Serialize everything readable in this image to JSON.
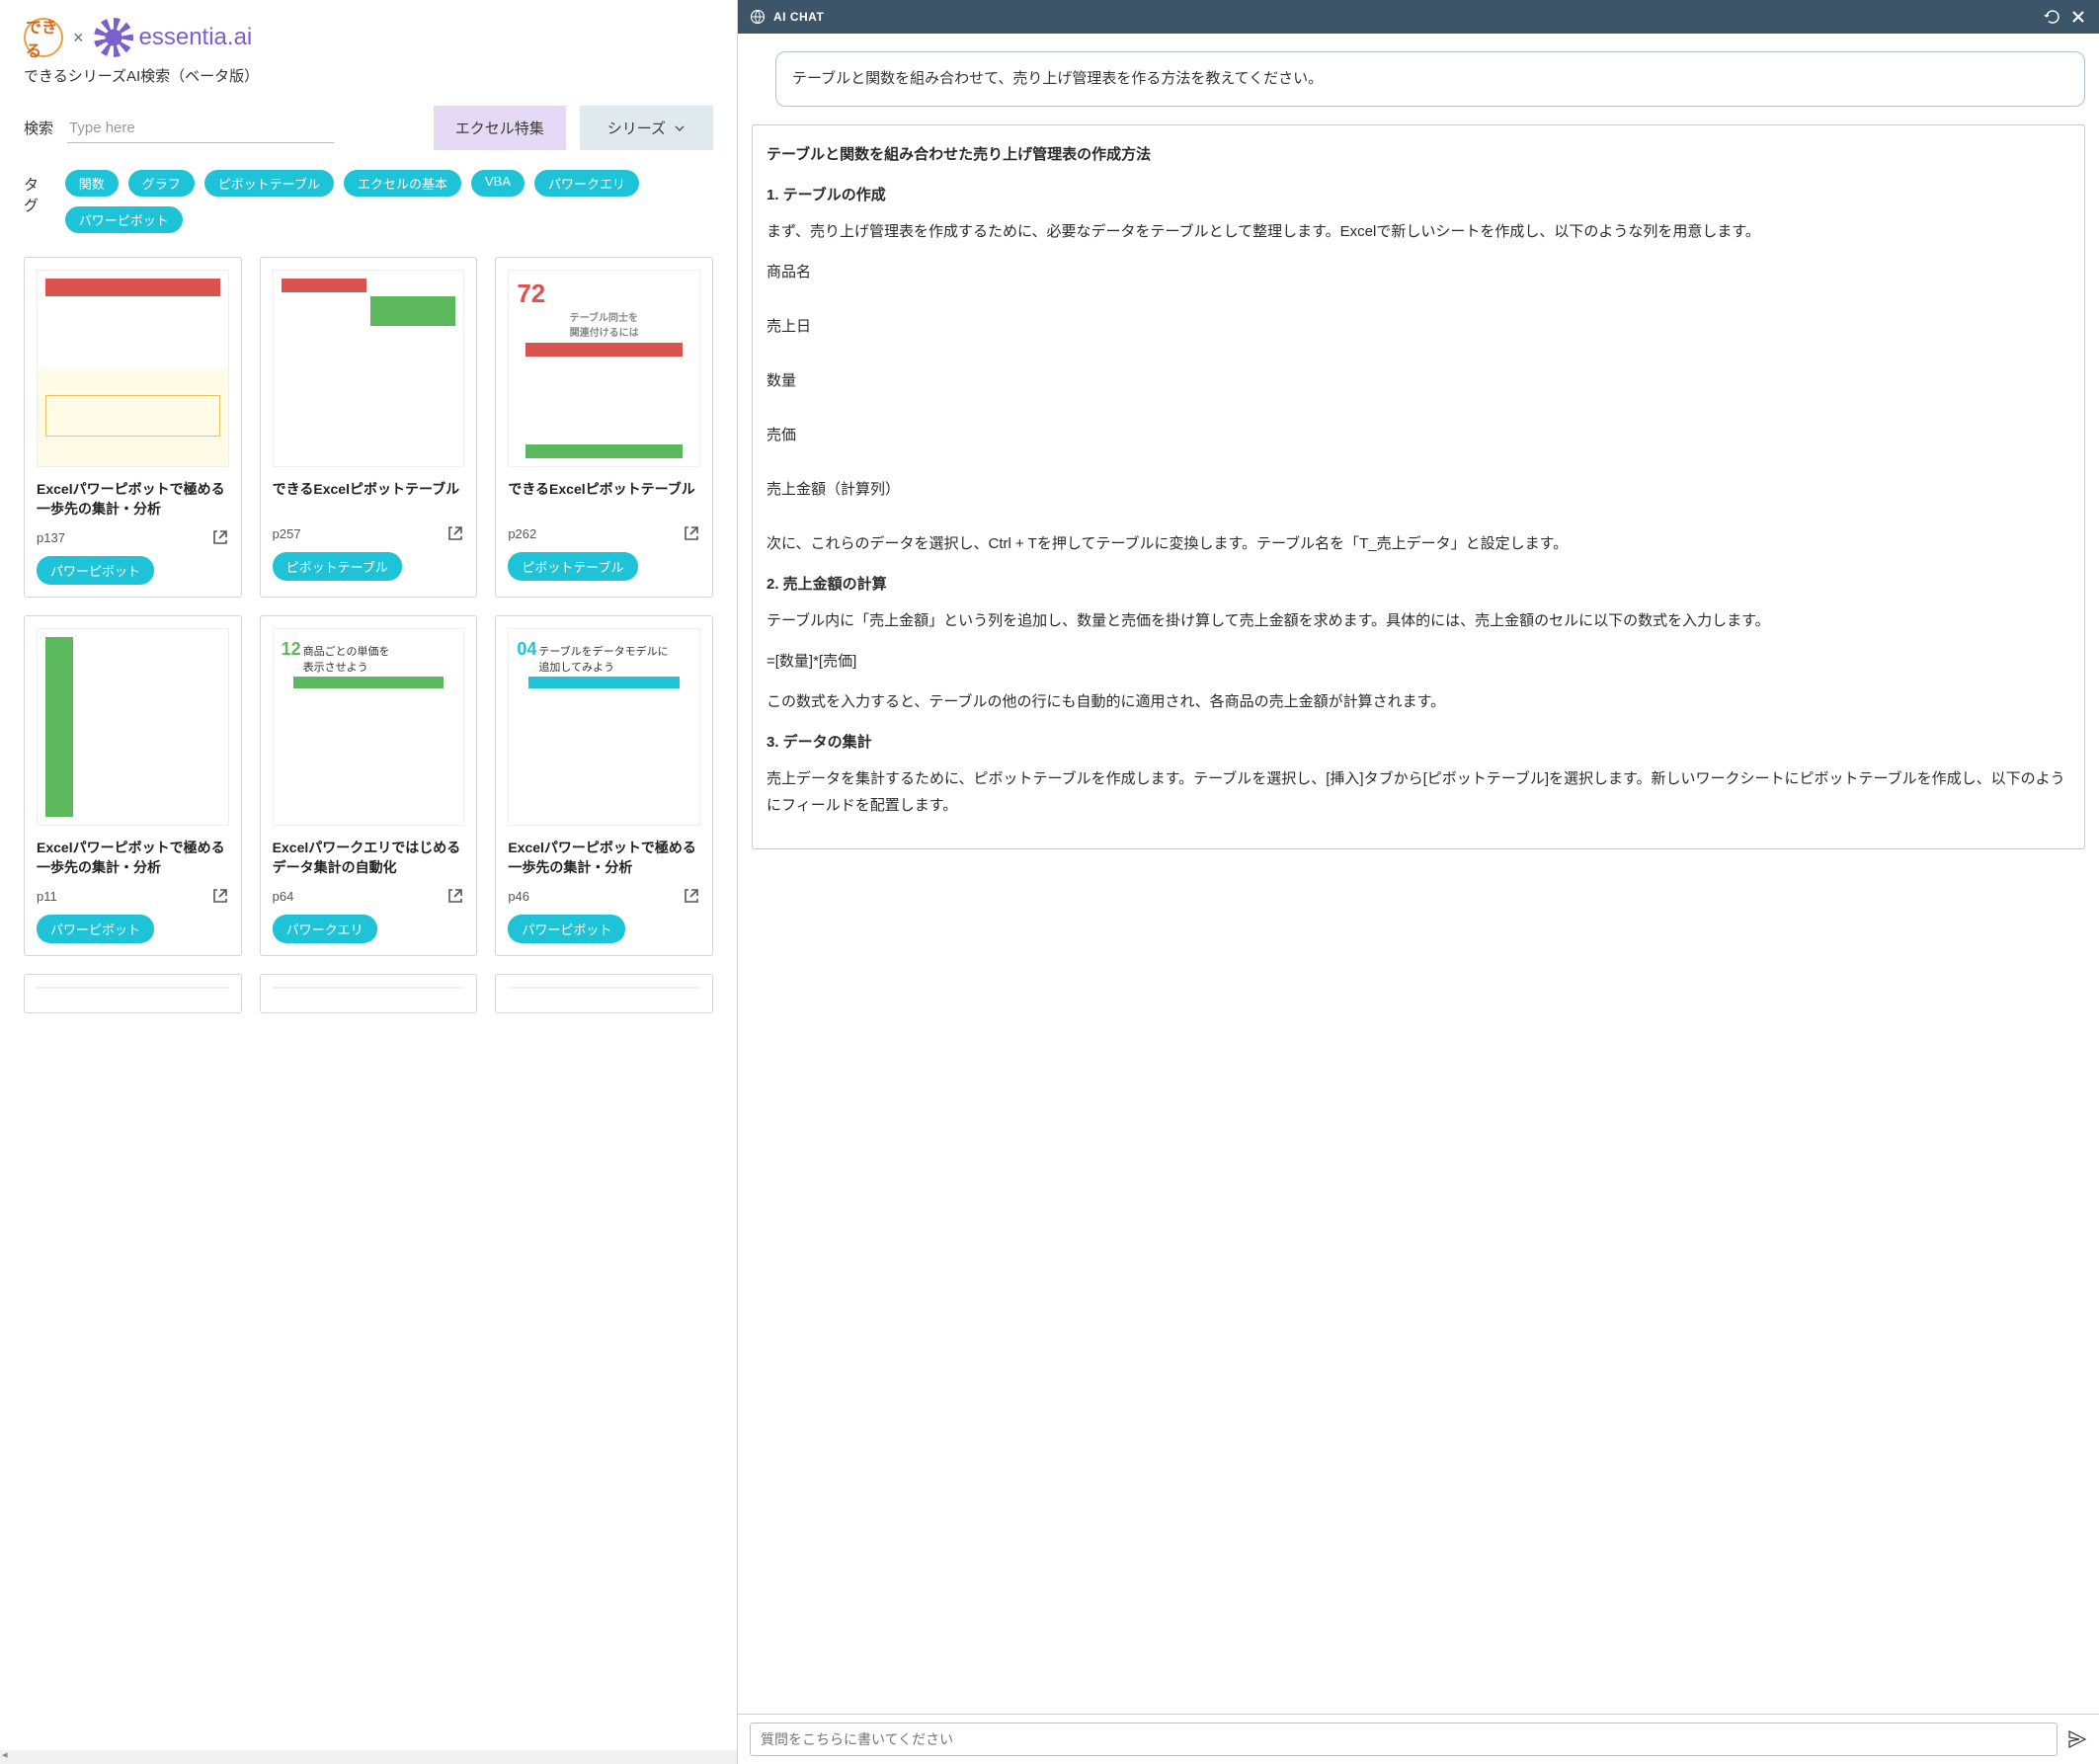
{
  "header": {
    "logo_dekiru_text": "できる",
    "logo_cross": "×",
    "logo_essentia": "essentia.ai",
    "subtitle": "できるシリーズAI検索（ベータ版）"
  },
  "search": {
    "label": "検索",
    "placeholder": "Type here",
    "featured_button": "エクセル特集",
    "series_button": "シリーズ"
  },
  "tags": {
    "label": "タグ",
    "items": [
      "関数",
      "グラフ",
      "ピボットテーブル",
      "エクセルの基本",
      "VBA",
      "パワークエリ",
      "パワーピボット"
    ]
  },
  "cards": [
    {
      "title": "Excelパワーピボットで極める一歩先の集計・分析",
      "page": "p137",
      "tag": "パワーピボット",
      "thumb": "a"
    },
    {
      "title": "できるExcelピボットテーブル",
      "page": "p257",
      "tag": "ピボットテーブル",
      "thumb": "b"
    },
    {
      "title": "できるExcelピボットテーブル",
      "page": "p262",
      "tag": "ピボットテーブル",
      "thumb": "c",
      "thumb_num": "72",
      "thumb_label": "テーブル同士を\n関連付けるには"
    },
    {
      "title": "Excelパワーピボットで極める一歩先の集計・分析",
      "page": "p11",
      "tag": "パワーピボット",
      "thumb": "d"
    },
    {
      "title": "Excelパワークエリではじめるデータ集計の自動化",
      "page": "p64",
      "tag": "パワークエリ",
      "thumb": "e",
      "thumb_num": "12",
      "thumb_label": "商品ごとの単価を\n表示させよう"
    },
    {
      "title": "Excelパワーピボットで極める一歩先の集計・分析",
      "page": "p46",
      "tag": "パワーピボット",
      "thumb": "f",
      "thumb_num": "04",
      "thumb_label": "テーブルをデータモデルに\n追加してみよう"
    }
  ],
  "chat": {
    "header_title": "AI CHAT",
    "user_message": "テーブルと関数を組み合わせて、売り上げ管理表を作る方法を教えてください。",
    "ai_heading": "テーブルと関数を組み合わせた売り上げ管理表の作成方法",
    "sections": [
      {
        "title": "1. テーブルの作成",
        "intro": "まず、売り上げ管理表を作成するために、必要なデータをテーブルとして整理します。Excelで新しいシートを作成し、以下のような列を用意します。",
        "items": [
          "商品名",
          "売上日",
          "数量",
          "売価",
          "売上金額（計算列）"
        ],
        "outro": "次に、これらのデータを選択し、Ctrl + Tを押してテーブルに変換します。テーブル名を「T_売上データ」と設定します。"
      },
      {
        "title": "2. 売上金額の計算",
        "intro": "テーブル内に「売上金額」という列を追加し、数量と売価を掛け算して売上金額を求めます。具体的には、売上金額のセルに以下の数式を入力します。",
        "formula": "=[数量]*[売価]",
        "outro": "この数式を入力すると、テーブルの他の行にも自動的に適用され、各商品の売上金額が計算されます。"
      },
      {
        "title": "3. データの集計",
        "intro": "売上データを集計するために、ピボットテーブルを作成します。テーブルを選択し、[挿入]タブから[ピボットテーブル]を選択します。新しいワークシートにピボットテーブルを作成し、以下のようにフィールドを配置します。"
      }
    ],
    "input_placeholder": "質問をこちらに書いてください"
  },
  "colors": {
    "brand_purple": "#7c5ed0",
    "tag_cyan": "#1ec3d8",
    "featured_bg": "#e6d9f5",
    "series_bg": "#e0e9ed",
    "chat_header_bg": "#3d5568",
    "user_msg_border": "#aac4d0"
  }
}
